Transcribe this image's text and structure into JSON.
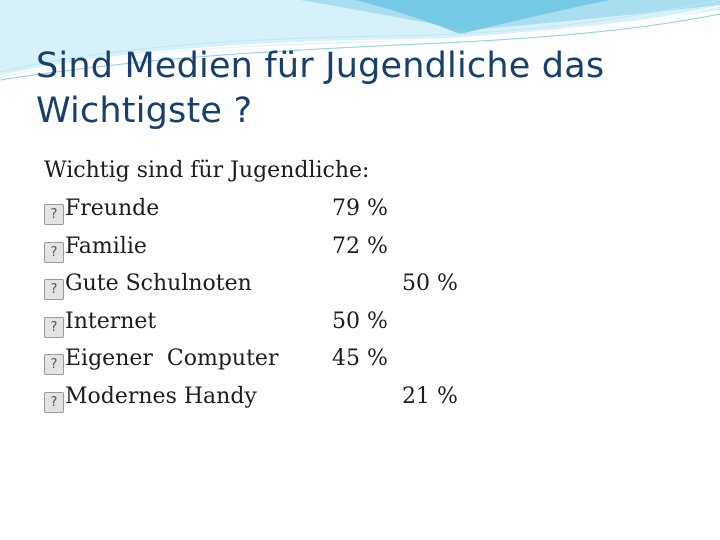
{
  "slide": {
    "title": "Sind Medien für Jugendliche das Wichtigste ?",
    "intro": "Wichtig sind für Jugendliche:",
    "bullet_glyph": "?",
    "items": [
      {
        "label": "Freunde",
        "value": "79 %",
        "column": 1
      },
      {
        "label": "Familie",
        "value": "72 %",
        "column": 1
      },
      {
        "label": "Gute Schulnoten",
        "value": "50 %",
        "column": 2
      },
      {
        "label": "Internet",
        "value": "50 %",
        "column": 1
      },
      {
        "label": "Eigener  Computer",
        "value": "45 %",
        "column": 1
      },
      {
        "label": "Modernes Handy",
        "value": "21 %",
        "column": 2
      }
    ]
  },
  "colors": {
    "title": "#17406d",
    "body_text": "#1c1c1c",
    "wave_light": "#cfeef7",
    "wave_mid": "#8fd3ea",
    "wave_dark": "#4fb6d8"
  }
}
